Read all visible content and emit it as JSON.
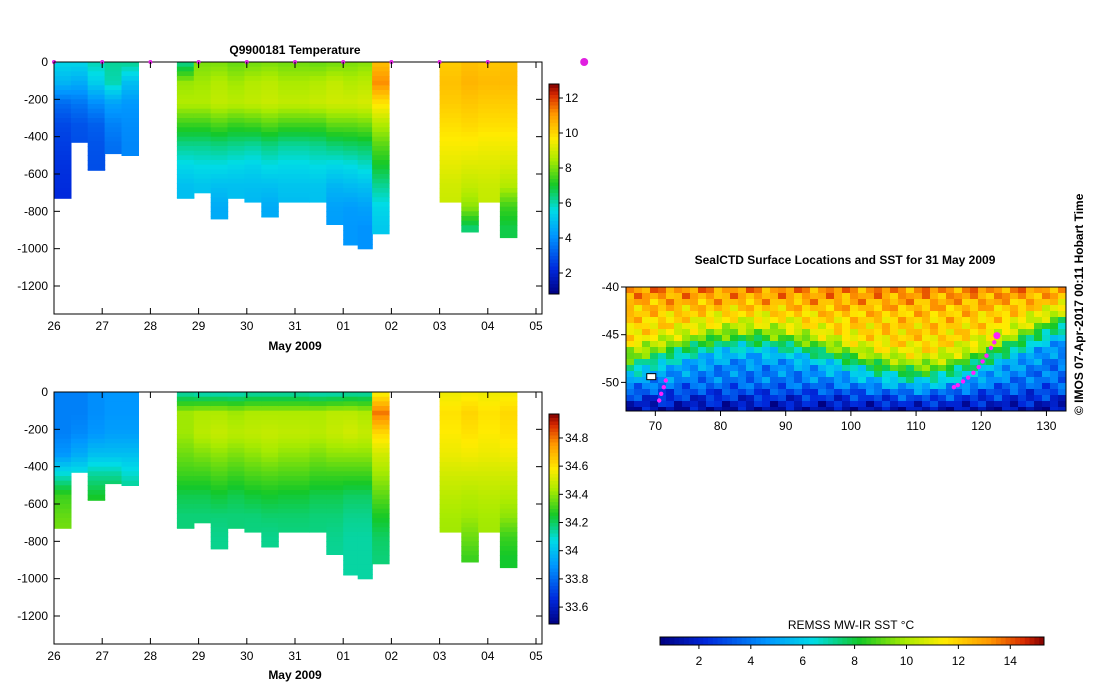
{
  "figure": {
    "copyright": "© IMOS 07-Apr-2017 00:11 Hobart Time"
  },
  "chart_data": [
    {
      "type": "heatmap",
      "name": "temperature-section",
      "title": "Q9900181  Temperature",
      "xlabel": "May 2009",
      "ylabel": "",
      "x_tick_labels": [
        "26",
        "27",
        "28",
        "29",
        "30",
        "31",
        "01",
        "02",
        "03",
        "04",
        "05"
      ],
      "y_ticks": [
        0,
        -200,
        -400,
        -600,
        -800,
        -1000,
        -1200
      ],
      "ylim": [
        -1350,
        0
      ],
      "colorbar": {
        "ticks": [
          2,
          4,
          6,
          8,
          10,
          12
        ],
        "range": [
          0.8,
          12.8
        ]
      },
      "profile_markers_day_offsets": [
        1,
        2,
        3,
        4,
        5,
        6,
        7,
        8,
        9,
        10,
        11
      ],
      "profiles": [
        {
          "x": 0.0,
          "maxDepth": 730,
          "values": [
            5.5,
            4.8,
            3.4,
            2.8,
            2.6,
            2.4,
            2.3,
            2.2,
            2.1,
            2.0
          ]
        },
        {
          "x": 0.35,
          "maxDepth": 430,
          "values": [
            5.5,
            4.6,
            3.6,
            3.0,
            2.9,
            2.9,
            2.9,
            2.9,
            2.9,
            2.9
          ]
        },
        {
          "x": 0.7,
          "maxDepth": 580,
          "values": [
            6.0,
            5.3,
            4.0,
            3.2,
            3.0,
            2.9,
            2.9,
            2.9,
            2.9,
            2.9
          ]
        },
        {
          "x": 1.05,
          "maxDepth": 490,
          "values": [
            6.2,
            6.0,
            4.4,
            3.8,
            3.5,
            3.4,
            3.4,
            3.4,
            3.4,
            3.4
          ]
        },
        {
          "x": 1.4,
          "maxDepth": 500,
          "values": [
            6.3,
            5.0,
            4.2,
            4.0,
            3.9,
            3.9,
            3.9,
            3.9,
            3.9,
            3.9
          ]
        },
        {
          "x": 2.55,
          "maxDepth": 730,
          "values": [
            6.2,
            8.3,
            8.6,
            7.4,
            6.3,
            5.5,
            5.0,
            5.0,
            5.0,
            5.0
          ]
        },
        {
          "x": 2.9,
          "maxDepth": 700,
          "values": [
            8.0,
            8.4,
            8.6,
            7.4,
            6.3,
            5.6,
            5.1,
            5.1,
            5.1,
            5.1
          ]
        },
        {
          "x": 3.25,
          "maxDepth": 840,
          "values": [
            8.0,
            8.6,
            8.8,
            7.6,
            6.4,
            5.6,
            5.0,
            4.6,
            4.6,
            4.6
          ]
        },
        {
          "x": 3.6,
          "maxDepth": 730,
          "values": [
            7.8,
            8.4,
            8.7,
            7.4,
            6.3,
            5.5,
            5.0,
            5.0,
            5.0,
            5.0
          ]
        },
        {
          "x": 3.95,
          "maxDepth": 750,
          "values": [
            7.9,
            8.6,
            8.8,
            7.5,
            6.2,
            5.4,
            5.0,
            4.8,
            4.8,
            4.8
          ]
        },
        {
          "x": 4.3,
          "maxDepth": 830,
          "values": [
            8.0,
            8.7,
            8.9,
            7.7,
            6.4,
            5.6,
            5.0,
            4.6,
            4.6,
            4.6
          ]
        },
        {
          "x": 4.65,
          "maxDepth": 750,
          "values": [
            7.9,
            8.5,
            8.8,
            7.5,
            6.2,
            5.5,
            5.1,
            4.9,
            4.9,
            4.9
          ]
        },
        {
          "x": 5.3,
          "maxDepth": 750,
          "values": [
            7.8,
            8.6,
            8.9,
            7.5,
            6.3,
            5.6,
            5.1,
            5.0,
            5.0,
            5.0
          ]
        },
        {
          "x": 5.65,
          "maxDepth": 870,
          "values": [
            7.9,
            8.8,
            9.0,
            7.8,
            6.5,
            5.5,
            4.8,
            4.4,
            4.3,
            4.3
          ]
        },
        {
          "x": 6.0,
          "maxDepth": 980,
          "values": [
            8.0,
            8.6,
            9.0,
            7.8,
            6.6,
            5.6,
            4.9,
            4.3,
            4.2,
            4.2
          ]
        },
        {
          "x": 6.3,
          "maxDepth": 1000,
          "values": [
            8.1,
            8.7,
            9.1,
            7.9,
            6.7,
            5.8,
            5.0,
            4.4,
            4.1,
            4.1
          ]
        },
        {
          "x": 6.6,
          "maxDepth": 920,
          "values": [
            10.4,
            11.2,
            9.8,
            8.6,
            7.7,
            7.0,
            6.2,
            5.5,
            5.2,
            5.2
          ]
        },
        {
          "x": 8.0,
          "maxDepth": 750,
          "values": [
            10.2,
            10.4,
            10.2,
            9.9,
            9.6,
            9.3,
            9.0,
            8.9,
            8.9,
            8.9
          ]
        },
        {
          "x": 8.45,
          "maxDepth": 910,
          "values": [
            10.4,
            10.6,
            10.3,
            10.0,
            9.6,
            9.2,
            8.8,
            8.2,
            6.5,
            6.5
          ]
        },
        {
          "x": 8.8,
          "maxDepth": 750,
          "values": [
            10.3,
            10.5,
            10.2,
            9.9,
            9.5,
            9.2,
            8.9,
            8.8,
            8.8,
            8.8
          ]
        },
        {
          "x": 9.25,
          "maxDepth": 940,
          "values": [
            10.4,
            10.5,
            10.2,
            9.9,
            9.5,
            9.1,
            8.6,
            7.4,
            6.8,
            6.8
          ]
        }
      ]
    },
    {
      "type": "heatmap",
      "name": "salinity-section",
      "title": "",
      "xlabel": "May 2009",
      "ylabel": "",
      "x_tick_labels": [
        "26",
        "27",
        "28",
        "29",
        "30",
        "31",
        "01",
        "02",
        "03",
        "04",
        "05"
      ],
      "y_ticks": [
        0,
        -200,
        -400,
        -600,
        -800,
        -1000,
        -1200
      ],
      "ylim": [
        -1350,
        0
      ],
      "colorbar": {
        "ticks": [
          33.6,
          33.8,
          34,
          34.2,
          34.4,
          34.6,
          34.8
        ],
        "range": [
          33.48,
          34.97
        ]
      },
      "profiles": [
        {
          "x": 0.0,
          "maxDepth": 730,
          "values": [
            33.85,
            33.85,
            33.85,
            33.9,
            34.1,
            34.3,
            34.35,
            34.38,
            34.38,
            34.38
          ]
        },
        {
          "x": 0.35,
          "maxDepth": 430,
          "values": [
            33.85,
            33.85,
            33.87,
            33.95,
            34.1,
            34.2,
            34.2,
            34.2,
            34.2,
            34.2
          ]
        },
        {
          "x": 0.7,
          "maxDepth": 580,
          "values": [
            33.88,
            33.88,
            33.9,
            34.0,
            34.15,
            34.25,
            34.3,
            34.3,
            34.3,
            34.3
          ]
        },
        {
          "x": 1.05,
          "maxDepth": 490,
          "values": [
            33.9,
            33.9,
            33.92,
            34.0,
            34.15,
            34.25,
            34.25,
            34.25,
            34.25,
            34.25
          ]
        },
        {
          "x": 1.4,
          "maxDepth": 500,
          "values": [
            33.9,
            33.9,
            33.92,
            34.0,
            34.1,
            34.2,
            34.2,
            34.2,
            34.2,
            34.2
          ]
        },
        {
          "x": 2.55,
          "maxDepth": 730,
          "values": [
            34.12,
            34.42,
            34.42,
            34.36,
            34.3,
            34.22,
            34.18,
            34.18,
            34.18,
            34.18
          ]
        },
        {
          "x": 2.9,
          "maxDepth": 700,
          "values": [
            34.1,
            34.44,
            34.46,
            34.38,
            34.3,
            34.22,
            34.18,
            34.18,
            34.18,
            34.18
          ]
        },
        {
          "x": 3.25,
          "maxDepth": 840,
          "values": [
            34.1,
            34.44,
            34.48,
            34.4,
            34.32,
            34.24,
            34.18,
            34.16,
            34.16,
            34.16
          ]
        },
        {
          "x": 3.6,
          "maxDepth": 730,
          "values": [
            34.1,
            34.42,
            34.46,
            34.38,
            34.3,
            34.22,
            34.18,
            34.18,
            34.18,
            34.18
          ]
        },
        {
          "x": 3.95,
          "maxDepth": 750,
          "values": [
            34.12,
            34.44,
            34.47,
            34.4,
            34.32,
            34.24,
            34.18,
            34.17,
            34.17,
            34.17
          ]
        },
        {
          "x": 4.3,
          "maxDepth": 830,
          "values": [
            34.12,
            34.44,
            34.48,
            34.42,
            34.33,
            34.25,
            34.19,
            34.16,
            34.16,
            34.16
          ]
        },
        {
          "x": 4.65,
          "maxDepth": 750,
          "values": [
            34.12,
            34.44,
            34.47,
            34.4,
            34.32,
            34.24,
            34.19,
            34.17,
            34.17,
            34.17
          ]
        },
        {
          "x": 5.3,
          "maxDepth": 750,
          "values": [
            34.1,
            34.44,
            34.46,
            34.38,
            34.3,
            34.22,
            34.18,
            34.17,
            34.17,
            34.17
          ]
        },
        {
          "x": 5.65,
          "maxDepth": 870,
          "values": [
            34.1,
            34.46,
            34.48,
            34.4,
            34.3,
            34.22,
            34.18,
            34.16,
            34.15,
            34.15
          ]
        },
        {
          "x": 6.0,
          "maxDepth": 980,
          "values": [
            34.12,
            34.46,
            34.5,
            34.4,
            34.3,
            34.2,
            34.16,
            34.14,
            34.14,
            34.14
          ]
        },
        {
          "x": 6.3,
          "maxDepth": 1000,
          "values": [
            34.12,
            34.44,
            34.48,
            34.4,
            34.3,
            34.2,
            34.16,
            34.14,
            34.14,
            34.14
          ]
        },
        {
          "x": 6.6,
          "maxDepth": 920,
          "values": [
            34.55,
            34.8,
            34.62,
            34.5,
            34.42,
            34.34,
            34.26,
            34.2,
            34.18,
            34.18
          ]
        },
        {
          "x": 8.0,
          "maxDepth": 750,
          "values": [
            34.55,
            34.6,
            34.58,
            34.55,
            34.5,
            34.46,
            34.43,
            34.42,
            34.42,
            34.42
          ]
        },
        {
          "x": 8.45,
          "maxDepth": 910,
          "values": [
            34.56,
            34.63,
            34.6,
            34.56,
            34.5,
            34.45,
            34.42,
            34.36,
            34.3,
            34.3
          ]
        },
        {
          "x": 8.8,
          "maxDepth": 750,
          "values": [
            34.55,
            34.6,
            34.58,
            34.55,
            34.5,
            34.46,
            34.43,
            34.42,
            34.42,
            34.42
          ]
        },
        {
          "x": 9.25,
          "maxDepth": 940,
          "values": [
            34.56,
            34.62,
            34.6,
            34.56,
            34.5,
            34.45,
            34.4,
            34.3,
            34.25,
            34.25
          ]
        }
      ]
    },
    {
      "type": "heatmap",
      "name": "sst-map",
      "title": "SealCTD Surface Locations and SST for 31 May 2009",
      "xlabel": "",
      "ylabel": "",
      "x_ticks": [
        70,
        80,
        90,
        100,
        110,
        120,
        130
      ],
      "y_ticks": [
        -40,
        -45,
        -50
      ],
      "xlim": [
        65.5,
        133
      ],
      "ylim": [
        -53,
        -40
      ],
      "colorbar": {
        "label": "REMSS MW-IR SST °C",
        "ticks": [
          2,
          4,
          6,
          8,
          10,
          12,
          14
        ],
        "range": [
          0.5,
          15.3
        ]
      },
      "track": [
        [
          122.4,
          -45.1
        ],
        [
          122.0,
          -45.8
        ],
        [
          121.5,
          -46.4
        ],
        [
          120.8,
          -47.2
        ],
        [
          120.2,
          -47.8
        ],
        [
          119.6,
          -48.4
        ],
        [
          118.8,
          -49.0
        ],
        [
          118.0,
          -49.5
        ],
        [
          117.2,
          -49.9
        ],
        [
          116.4,
          -50.3
        ],
        [
          115.8,
          -50.5
        ],
        [
          71.6,
          -49.8
        ],
        [
          71.3,
          -50.5
        ],
        [
          70.9,
          -51.2
        ],
        [
          70.6,
          -51.9
        ]
      ],
      "island_marker": [
        69.3,
        -49.4
      ]
    }
  ]
}
